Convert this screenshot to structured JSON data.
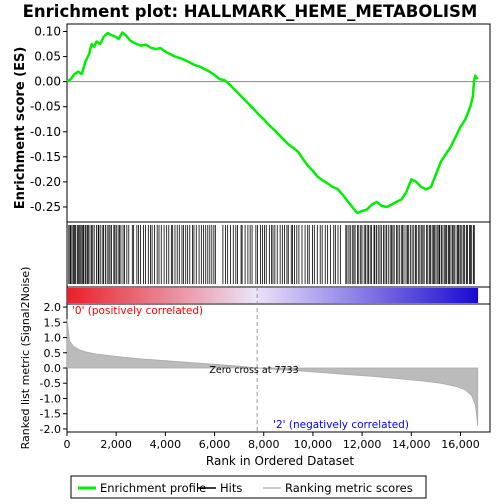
{
  "chart_data": {
    "type": "line",
    "title": "Enrichment plot: HALLMARK_HEME_METABOLISM",
    "xlabel": "Rank in Ordered Dataset",
    "ylabel_top": "Enrichment score (ES)",
    "ylabel_bottom": "Ranked list metric (Signal2Noise)",
    "x_ticks": [
      "0",
      "2,000",
      "4,000",
      "6,000",
      "8,000",
      "10,000",
      "12,000",
      "14,000",
      "16,000"
    ],
    "x_tick_values": [
      0,
      2000,
      4000,
      6000,
      8000,
      10000,
      12000,
      14000,
      16000
    ],
    "xlim": [
      0,
      17200
    ],
    "es_ylim": [
      -0.28,
      0.115
    ],
    "es_ticks": [
      "0.10",
      "0.05",
      "0.00",
      "-0.05",
      "-0.10",
      "-0.15",
      "-0.20",
      "-0.25"
    ],
    "es_tick_values": [
      0.1,
      0.05,
      0.0,
      -0.05,
      -0.1,
      -0.15,
      -0.2,
      -0.25
    ],
    "metric_ylim": [
      -2.1,
      2.1
    ],
    "metric_ticks": [
      "2.0",
      "1.5",
      "1.0",
      "0.5",
      "0.0",
      "-0.5",
      "-1.0",
      "-1.5",
      "-2.0"
    ],
    "metric_tick_values": [
      2.0,
      1.5,
      1.0,
      0.5,
      0.0,
      -0.5,
      -1.0,
      -1.5,
      -2.0
    ],
    "n_genes": 16700,
    "enrichment_profile": {
      "x": [
        0,
        150,
        300,
        450,
        600,
        750,
        900,
        1000,
        1100,
        1200,
        1350,
        1500,
        1650,
        1800,
        1950,
        2100,
        2250,
        2400,
        2550,
        2700,
        2850,
        3000,
        3200,
        3400,
        3600,
        3800,
        4000,
        4200,
        4400,
        4600,
        4800,
        5000,
        5200,
        5400,
        5600,
        5800,
        6000,
        6200,
        6400,
        6600,
        6800,
        7000,
        7200,
        7400,
        7600,
        7800,
        8000,
        8200,
        8400,
        8600,
        8800,
        9000,
        9200,
        9400,
        9600,
        9800,
        10000,
        10200,
        10400,
        10600,
        10800,
        11000,
        11200,
        11400,
        11600,
        11800,
        12000,
        12200,
        12400,
        12600,
        12800,
        13000,
        13200,
        13400,
        13600,
        13800,
        14000,
        14200,
        14400,
        14600,
        14800,
        15000,
        15200,
        15400,
        15600,
        15800,
        16000,
        16200,
        16400,
        16500,
        16550,
        16600,
        16700
      ],
      "y": [
        0.0,
        0.005,
        0.015,
        0.02,
        0.015,
        0.04,
        0.055,
        0.075,
        0.07,
        0.08,
        0.075,
        0.09,
        0.097,
        0.093,
        0.09,
        0.085,
        0.098,
        0.092,
        0.083,
        0.078,
        0.075,
        0.072,
        0.074,
        0.068,
        0.065,
        0.067,
        0.06,
        0.055,
        0.05,
        0.047,
        0.043,
        0.038,
        0.033,
        0.03,
        0.025,
        0.02,
        0.013,
        0.005,
        0.003,
        -0.005,
        -0.015,
        -0.025,
        -0.035,
        -0.045,
        -0.055,
        -0.066,
        -0.075,
        -0.086,
        -0.095,
        -0.105,
        -0.115,
        -0.125,
        -0.132,
        -0.14,
        -0.155,
        -0.168,
        -0.178,
        -0.19,
        -0.197,
        -0.203,
        -0.21,
        -0.214,
        -0.225,
        -0.238,
        -0.25,
        -0.262,
        -0.258,
        -0.255,
        -0.245,
        -0.24,
        -0.248,
        -0.25,
        -0.245,
        -0.24,
        -0.235,
        -0.22,
        -0.195,
        -0.2,
        -0.21,
        -0.215,
        -0.21,
        -0.185,
        -0.16,
        -0.145,
        -0.13,
        -0.11,
        -0.09,
        -0.075,
        -0.05,
        -0.03,
        0.0,
        0.012,
        0.005
      ],
      "color": "#00ee00"
    },
    "hits": [
      {
        "from": 50,
        "to": 900,
        "n": 18
      },
      {
        "from": 900,
        "to": 2300,
        "n": 22
      },
      {
        "from": 2300,
        "to": 4000,
        "n": 18
      },
      {
        "from": 4000,
        "to": 6100,
        "n": 24
      },
      {
        "from": 6300,
        "to": 7900,
        "n": 16
      },
      {
        "from": 7900,
        "to": 9500,
        "n": 18
      },
      {
        "from": 9500,
        "to": 11200,
        "n": 16
      },
      {
        "from": 11300,
        "to": 12900,
        "n": 24
      },
      {
        "from": 12900,
        "to": 14700,
        "n": 28
      },
      {
        "from": 14700,
        "to": 16600,
        "n": 34
      }
    ],
    "metric_profile": {
      "x": [
        0,
        100,
        250,
        500,
        800,
        1200,
        2000,
        3000,
        4000,
        5000,
        6000,
        7000,
        7733,
        8500,
        9500,
        10500,
        11500,
        12500,
        13500,
        14500,
        15200,
        15800,
        16200,
        16450,
        16600,
        16650,
        16700
      ],
      "y": [
        1.6,
        0.9,
        0.72,
        0.6,
        0.52,
        0.46,
        0.38,
        0.3,
        0.24,
        0.18,
        0.12,
        0.06,
        0.0,
        -0.05,
        -0.1,
        -0.16,
        -0.22,
        -0.28,
        -0.35,
        -0.43,
        -0.5,
        -0.6,
        -0.72,
        -0.9,
        -1.2,
        -1.5,
        -1.9
      ]
    },
    "zero_cross": 7733,
    "zero_cross_label": "Zero cross at 7733",
    "pos_label": "'0' (positively correlated)",
    "neg_label": "'2' (negatively correlated)",
    "pos_label_color": "#ff0000",
    "neg_label_color": "#0000ff",
    "legend": [
      {
        "label": "Enrichment profile",
        "color": "#00ee00",
        "kind": "line"
      },
      {
        "label": "Hits",
        "color": "#000000",
        "kind": "line"
      },
      {
        "label": "Ranking metric scores",
        "color": "#bbbbbb",
        "kind": "line"
      }
    ]
  }
}
